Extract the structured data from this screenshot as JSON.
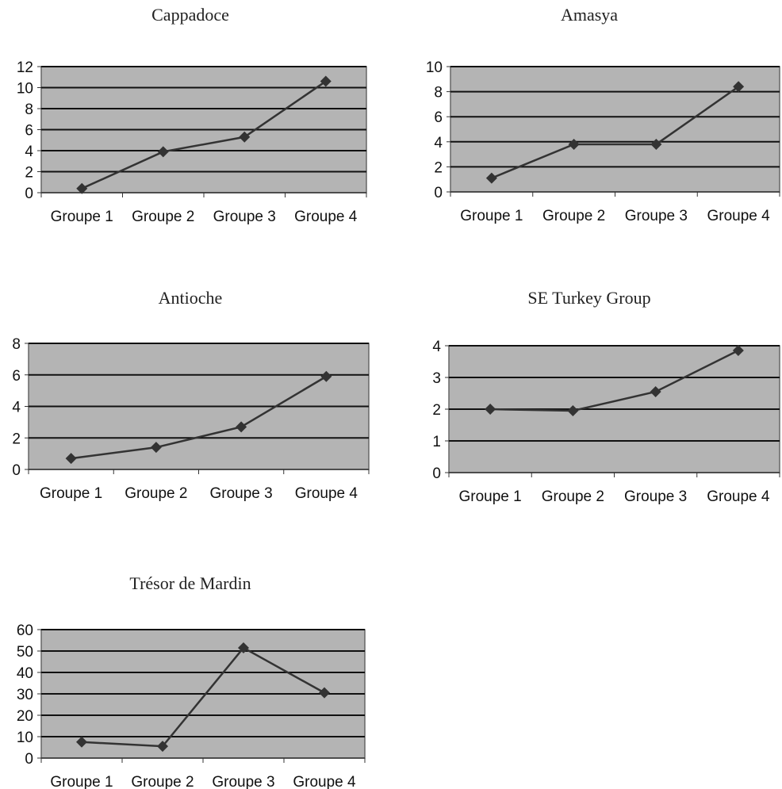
{
  "chart_data": [
    {
      "type": "line",
      "title": "Cappadoce",
      "categories": [
        "Groupe 1",
        "Groupe 2",
        "Groupe 3",
        "Groupe 4"
      ],
      "series": [
        {
          "values": [
            0.4,
            3.9,
            5.3,
            10.6
          ]
        }
      ],
      "ylim": [
        0,
        12
      ],
      "yticks": [
        0,
        2,
        4,
        6,
        8,
        10,
        12
      ],
      "grid": true,
      "plot_color": "#b4b4b4",
      "line_color": "#333333"
    },
    {
      "type": "line",
      "title": "Amasya",
      "categories": [
        "Groupe 1",
        "Groupe 2",
        "Groupe 3",
        "Groupe 4"
      ],
      "series": [
        {
          "values": [
            1.1,
            3.8,
            3.8,
            8.4
          ]
        }
      ],
      "ylim": [
        0,
        10
      ],
      "yticks": [
        0,
        2,
        4,
        6,
        8,
        10
      ],
      "grid": true,
      "plot_color": "#b4b4b4",
      "line_color": "#333333"
    },
    {
      "type": "line",
      "title": "Antioche",
      "categories": [
        "Groupe 1",
        "Groupe 2",
        "Groupe 3",
        "Groupe 4"
      ],
      "series": [
        {
          "values": [
            0.7,
            1.4,
            2.7,
            5.9
          ]
        }
      ],
      "ylim": [
        0,
        8
      ],
      "yticks": [
        0,
        2,
        4,
        6,
        8
      ],
      "grid": true,
      "plot_color": "#b4b4b4",
      "line_color": "#333333"
    },
    {
      "type": "line",
      "title": "SE Turkey Group",
      "categories": [
        "Groupe 1",
        "Groupe 2",
        "Groupe 3",
        "Groupe 4"
      ],
      "series": [
        {
          "values": [
            2.0,
            1.95,
            2.55,
            3.85
          ]
        }
      ],
      "ylim": [
        0,
        4
      ],
      "yticks": [
        0,
        1,
        2,
        3,
        4
      ],
      "grid": true,
      "plot_color": "#b4b4b4",
      "line_color": "#333333"
    },
    {
      "type": "line",
      "title": "Trésor de Mardin",
      "categories": [
        "Groupe 1",
        "Groupe 2",
        "Groupe 3",
        "Groupe 4"
      ],
      "series": [
        {
          "values": [
            7.5,
            5.5,
            51.5,
            30.5
          ]
        }
      ],
      "ylim": [
        0,
        60
      ],
      "yticks": [
        0,
        10,
        20,
        30,
        40,
        50,
        60
      ],
      "grid": true,
      "plot_color": "#b4b4b4",
      "line_color": "#333333"
    }
  ]
}
